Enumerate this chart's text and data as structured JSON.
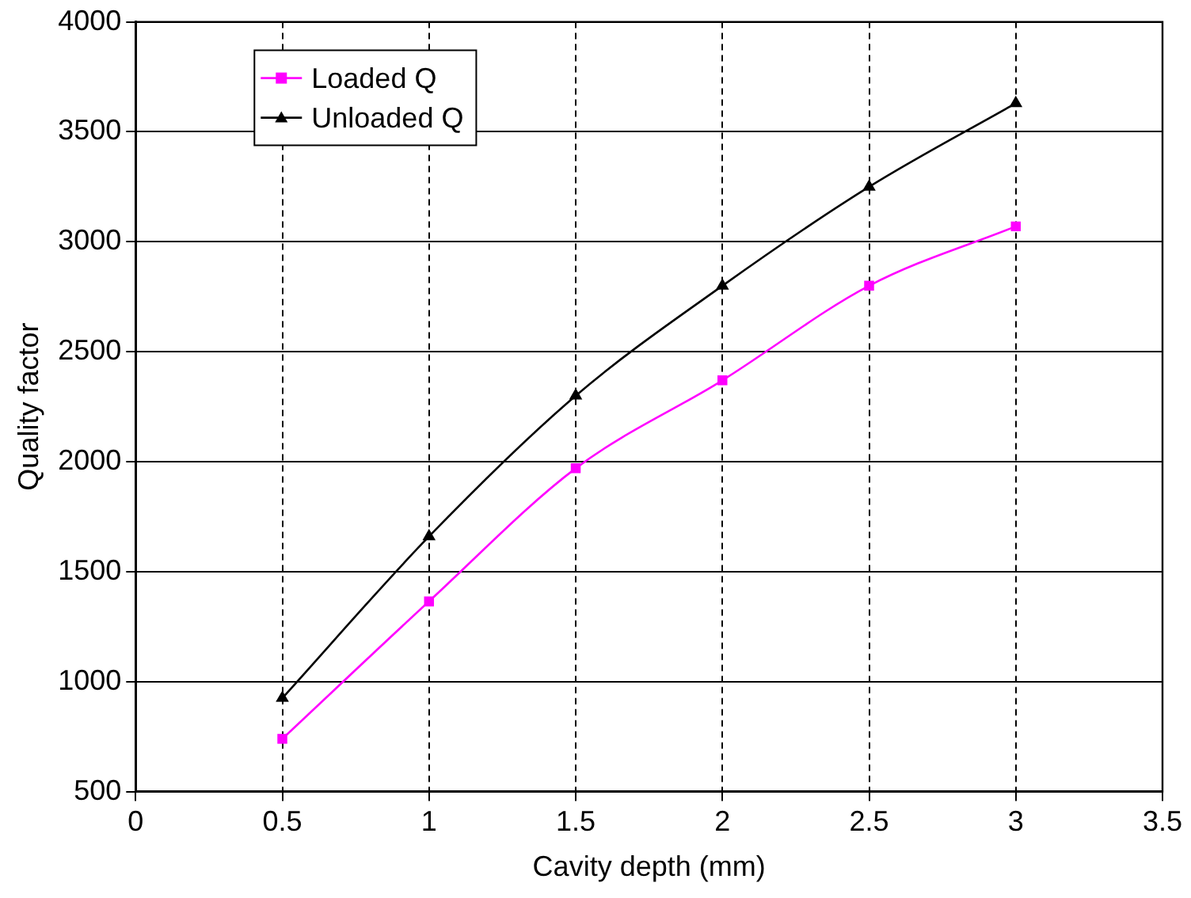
{
  "chart_data": {
    "type": "line",
    "xlabel": "Cavity depth (mm)",
    "ylabel": "Quality factor",
    "x": [
      0.5,
      1,
      1.5,
      2,
      2.5,
      3
    ],
    "series": [
      {
        "name": "Loaded Q",
        "color": "#ff00ff",
        "marker": "square",
        "values": [
          740,
          1365,
          1970,
          2370,
          2800,
          3070
        ]
      },
      {
        "name": "Unloaded Q",
        "color": "#000000",
        "marker": "triangle",
        "values": [
          925,
          1660,
          2300,
          2800,
          3250,
          3630
        ]
      }
    ],
    "xlim": [
      0,
      3.5
    ],
    "xticks": [
      0,
      0.5,
      1,
      1.5,
      2,
      2.5,
      3,
      3.5
    ],
    "ylim": [
      500,
      4000
    ],
    "yticks": [
      500,
      1000,
      1500,
      2000,
      2500,
      3000,
      3500,
      4000
    ],
    "grid": true,
    "legend": "top left",
    "line_style": "solid"
  }
}
